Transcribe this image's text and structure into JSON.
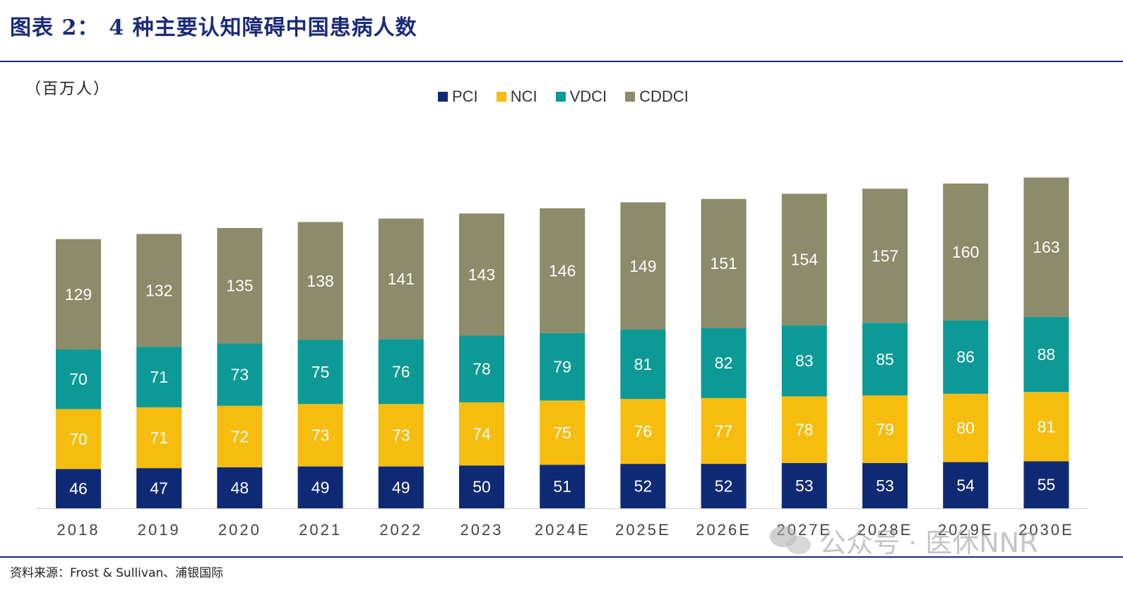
{
  "header": {
    "figure_label": "图表 2：",
    "title": "4 种主要认知障碍中国患病人数"
  },
  "unit_label": "（百万人）",
  "source": "资料来源：Frost & Sullivan、浦银国际",
  "watermark": "公众号 · 医休NNR",
  "colors": {
    "PCI": "#0f2a74",
    "NCI": "#f6bd0e",
    "VDCI": "#0d9a96",
    "CDDCI": "#8c8b6a",
    "rule": "#1b2a78"
  },
  "chart_data": {
    "type": "bar",
    "stacked": true,
    "categories": [
      "2018",
      "2019",
      "2020",
      "2021",
      "2022",
      "2023",
      "2024E",
      "2025E",
      "2026E",
      "2027E",
      "2028E",
      "2029E",
      "2030E"
    ],
    "series": [
      {
        "name": "PCI",
        "values": [
          46,
          47,
          48,
          49,
          49,
          50,
          51,
          52,
          52,
          53,
          53,
          54,
          55
        ]
      },
      {
        "name": "NCI",
        "values": [
          70,
          71,
          72,
          73,
          73,
          74,
          75,
          76,
          77,
          78,
          79,
          80,
          81
        ]
      },
      {
        "name": "VDCI",
        "values": [
          70,
          71,
          73,
          75,
          76,
          78,
          79,
          81,
          82,
          83,
          85,
          86,
          88
        ]
      },
      {
        "name": "CDDCI",
        "values": [
          129,
          132,
          135,
          138,
          141,
          143,
          146,
          149,
          151,
          154,
          157,
          160,
          163
        ]
      }
    ],
    "legend_position": "top-center",
    "grid": false,
    "data_labels": true
  }
}
